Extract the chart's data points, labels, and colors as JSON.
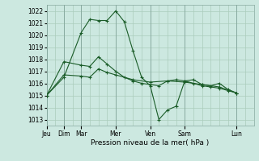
{
  "background_color": "#cce8e0",
  "grid_color": "#aaccbb",
  "line_color": "#1a5c28",
  "xlabel": "Pression niveau de la mer( hPa )",
  "ylim": [
    1012.5,
    1022.5
  ],
  "yticks": [
    1013,
    1014,
    1015,
    1016,
    1017,
    1018,
    1019,
    1020,
    1021,
    1022
  ],
  "day_labels": [
    "Jeu",
    "Dim",
    "Mar",
    "Mer",
    "Ven",
    "Sam",
    "Lun"
  ],
  "day_positions": [
    0,
    24,
    48,
    96,
    144,
    192,
    264
  ],
  "total_hours": 288,
  "series": [
    {
      "x": [
        0,
        24,
        48,
        60,
        72,
        84,
        96,
        108,
        120,
        132,
        144,
        156,
        168,
        180,
        192,
        204,
        216,
        228,
        240,
        252,
        264
      ],
      "y": [
        1015.0,
        1016.5,
        1020.2,
        1021.3,
        1021.2,
        1021.2,
        1022.0,
        1021.1,
        1018.7,
        1016.5,
        1015.8,
        1013.0,
        1013.8,
        1014.1,
        1016.2,
        1016.3,
        1015.9,
        1015.8,
        1016.0,
        1015.5,
        1015.2
      ]
    },
    {
      "x": [
        0,
        24,
        48,
        60,
        72,
        84,
        96,
        108,
        120,
        132,
        144,
        156,
        168,
        180,
        192,
        204,
        216,
        228,
        240,
        252,
        264
      ],
      "y": [
        1015.0,
        1017.8,
        1017.5,
        1017.4,
        1018.2,
        1017.6,
        1017.0,
        1016.5,
        1016.2,
        1016.0,
        1015.9,
        1015.8,
        1016.2,
        1016.3,
        1016.2,
        1016.0,
        1015.8,
        1015.7,
        1015.6,
        1015.4,
        1015.2
      ]
    },
    {
      "x": [
        0,
        24,
        48,
        60,
        72,
        84,
        96,
        120,
        144,
        168,
        192,
        216,
        240,
        264
      ],
      "y": [
        1015.0,
        1016.7,
        1016.6,
        1016.5,
        1017.2,
        1016.9,
        1016.7,
        1016.3,
        1016.1,
        1016.2,
        1016.1,
        1015.9,
        1015.7,
        1015.2
      ]
    }
  ]
}
